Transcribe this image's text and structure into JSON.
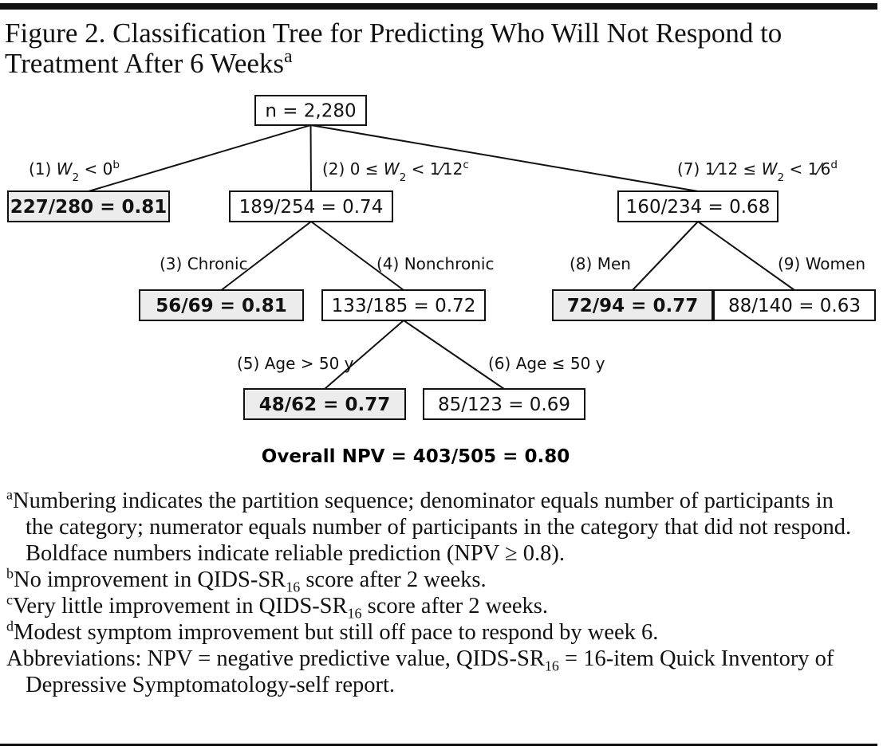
{
  "title": [
    [
      {
        "t": "Figure 2. Classification Tree for Predicting Who Will Not Respond to"
      }
    ],
    [
      {
        "t": "Treatment After 6 Weeks"
      },
      {
        "t": "a",
        "s": "sup"
      }
    ]
  ],
  "nodes": [
    {
      "label": "n = 2,280"
    },
    {
      "label": "227/280 = 0.81",
      "bold": true
    },
    {
      "label": "189/254 = 0.74"
    },
    {
      "label": "160/234 = 0.68"
    },
    {
      "label": "56/69 = 0.81",
      "bold": true
    },
    {
      "label": "133/185 = 0.72"
    },
    {
      "label": "72/94 = 0.77",
      "bold": true
    },
    {
      "label": "88/140 = 0.63"
    },
    {
      "label": "48/62 = 0.77",
      "bold": true
    },
    {
      "label": "85/123 = 0.69"
    }
  ],
  "edges": [
    [
      {
        "t": "(1) "
      },
      {
        "t": "W",
        "s": "i"
      },
      {
        "t": "2",
        "s": "sub"
      },
      {
        "t": " < 0"
      },
      {
        "t": "b",
        "s": "sup"
      }
    ],
    [
      {
        "t": "(2) 0 ≤ "
      },
      {
        "t": "W",
        "s": "i"
      },
      {
        "t": "2",
        "s": "sub"
      },
      {
        "t": " < 1⁄12"
      },
      {
        "t": "c",
        "s": "sup"
      }
    ],
    [
      {
        "t": "(7) 1⁄12 ≤ "
      },
      {
        "t": "W",
        "s": "i"
      },
      {
        "t": "2",
        "s": "sub"
      },
      {
        "t": " < 1⁄6"
      },
      {
        "t": "d",
        "s": "sup"
      }
    ],
    [
      {
        "t": "(3) Chronic"
      }
    ],
    [
      {
        "t": "(4) Nonchronic"
      }
    ],
    [
      {
        "t": "(8) Men"
      }
    ],
    [
      {
        "t": "(9) Women"
      }
    ],
    [
      {
        "t": "(5) Age > 50 y"
      }
    ],
    [
      {
        "t": "(6) Age ≤ 50 y"
      }
    ]
  ],
  "overall": "Overall NPV = 403/505 = 0.80",
  "footnotes": [
    [
      {
        "t": "a",
        "s": "sup"
      },
      {
        "t": "Numbering indicates the partition sequence; denominator equals number of participants in the category; numerator equals number of participants in the category that did not respond. Boldface numbers indicate reliable prediction (NPV ≥ 0.8)."
      }
    ],
    [
      {
        "t": "b",
        "s": "sup"
      },
      {
        "t": "No improvement in QIDS-SR"
      },
      {
        "t": "16",
        "s": "sub"
      },
      {
        "t": " score after 2 weeks."
      }
    ],
    [
      {
        "t": "c",
        "s": "sup"
      },
      {
        "t": "Very little improvement in QIDS-SR"
      },
      {
        "t": "16",
        "s": "sub"
      },
      {
        "t": " score after 2 weeks."
      }
    ],
    [
      {
        "t": "d",
        "s": "sup"
      },
      {
        "t": "Modest symptom improvement but still off pace to respond by week 6."
      }
    ],
    [
      {
        "t": "Abbreviations: NPV = negative predictive value, QIDS-SR"
      },
      {
        "t": "16",
        "s": "sub"
      },
      {
        "t": " = 16-item Quick Inventory of Depressive Symptomatology-self report."
      }
    ]
  ]
}
